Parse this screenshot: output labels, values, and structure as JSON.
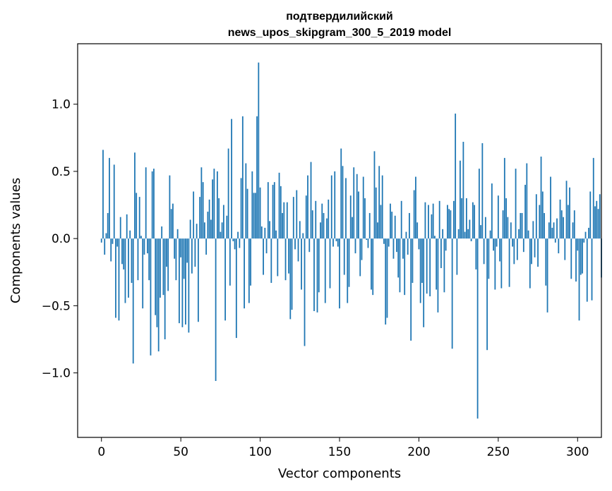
{
  "chart_data": {
    "type": "bar",
    "title_line1": "подтвердилийский",
    "title_line2": "news_upos_skipgram_300_5_2019 model",
    "xlabel": "Vector components",
    "ylabel": "Components values",
    "xlim": [
      -15,
      315
    ],
    "ylim": [
      -1.48,
      1.45
    ],
    "xticks": [
      0,
      50,
      100,
      150,
      200,
      250,
      300
    ],
    "xtick_labels": [
      "0",
      "50",
      "100",
      "150",
      "200",
      "250",
      "300"
    ],
    "yticks": [
      -1.0,
      -0.5,
      0.0,
      0.5,
      1.0
    ],
    "ytick_labels": [
      "−1.0",
      "−0.5",
      "0.0",
      "0.5",
      "1.0"
    ],
    "bar_color": "#1f77b4",
    "values": [
      -0.03,
      0.66,
      -0.12,
      0.04,
      0.19,
      0.6,
      -0.17,
      -0.04,
      0.55,
      -0.59,
      -0.06,
      -0.61,
      0.16,
      -0.19,
      -0.23,
      -0.48,
      0.18,
      -0.44,
      0.06,
      -0.33,
      -0.93,
      0.64,
      0.34,
      -0.31,
      0.31,
      0.02,
      -0.52,
      -0.12,
      0.53,
      -0.11,
      -0.31,
      -0.87,
      0.5,
      0.52,
      -0.57,
      -0.66,
      -0.84,
      -0.44,
      0.09,
      -0.42,
      -0.75,
      -0.21,
      -0.39,
      0.47,
      0.22,
      0.26,
      -0.15,
      -0.31,
      0.07,
      -0.63,
      -0.14,
      -0.66,
      -0.3,
      -0.64,
      -0.18,
      -0.7,
      0.14,
      -0.26,
      0.35,
      -0.21,
      0.11,
      -0.62,
      0.31,
      0.53,
      0.42,
      0.12,
      -0.12,
      0.2,
      0.29,
      0.14,
      0.44,
      0.52,
      -1.06,
      0.5,
      0.3,
      0.05,
      0.12,
      0.25,
      -0.61,
      0.17,
      0.67,
      -0.35,
      0.89,
      -0.02,
      -0.08,
      -0.74,
      0.05,
      -0.07,
      0.45,
      0.91,
      -0.52,
      0.56,
      0.37,
      -0.48,
      -0.35,
      0.5,
      0.34,
      0.34,
      0.91,
      1.31,
      0.38,
      0.09,
      -0.27,
      0.08,
      -0.11,
      0.42,
      0.13,
      -0.33,
      0.4,
      0.42,
      0.06,
      -0.28,
      0.49,
      0.39,
      0.19,
      0.27,
      -0.31,
      0.27,
      -0.26,
      -0.6,
      -0.53,
      0.31,
      -0.08,
      0.36,
      -0.17,
      0.13,
      -0.38,
      0.04,
      -0.8,
      0.32,
      0.47,
      -0.1,
      0.57,
      0.21,
      -0.54,
      0.28,
      -0.55,
      -0.4,
      0.12,
      0.26,
      0.19,
      -0.48,
      0.15,
      0.29,
      -0.37,
      0.47,
      -0.06,
      0.5,
      -0.02,
      -0.06,
      -0.52,
      0.67,
      0.54,
      -0.27,
      0.45,
      -0.48,
      -0.36,
      0.32,
      0.16,
      0.53,
      -0.11,
      0.48,
      0.35,
      -0.28,
      -0.16,
      0.46,
      0.3,
      -0.01,
      -0.07,
      0.19,
      -0.38,
      -0.42,
      0.65,
      0.38,
      0.12,
      0.54,
      0.25,
      0.47,
      -0.04,
      -0.64,
      -0.59,
      -0.06,
      0.26,
      0.2,
      -0.15,
      0.17,
      -0.1,
      -0.29,
      -0.4,
      0.28,
      -0.15,
      -0.42,
      0.05,
      -0.12,
      0.19,
      -0.76,
      -0.33,
      0.36,
      0.46,
      0.12,
      -0.08,
      -0.48,
      -0.33,
      -0.66,
      0.27,
      -0.41,
      0.25,
      -0.43,
      0.18,
      0.26,
      0.02,
      -0.38,
      -0.55,
      0.28,
      -0.22,
      0.07,
      -0.4,
      -0.09,
      0.25,
      0.22,
      0.21,
      -0.82,
      0.28,
      0.93,
      -0.27,
      0.07,
      0.58,
      0.3,
      0.72,
      0.05,
      0.3,
      0.07,
      0.14,
      -0.02,
      0.27,
      0.25,
      -0.23,
      -1.34,
      0.52,
      0.1,
      0.71,
      -0.19,
      0.16,
      -0.83,
      -0.3,
      0.06,
      0.41,
      -0.09,
      -0.38,
      -0.06,
      0.32,
      -0.17,
      -0.37,
      0.21,
      0.6,
      0.3,
      0.16,
      -0.36,
      0.12,
      -0.06,
      -0.19,
      0.52,
      -0.16,
      0.07,
      0.19,
      0.19,
      -0.1,
      0.4,
      0.56,
      0.06,
      -0.37,
      -0.19,
      0.13,
      -0.14,
      0.33,
      -0.21,
      0.25,
      0.61,
      0.35,
      0.19,
      -0.35,
      -0.55,
      0.12,
      0.46,
      0.08,
      0.12,
      -0.03,
      0.15,
      -0.11,
      0.29,
      0.21,
      0.16,
      -0.16,
      0.43,
      0.25,
      0.38,
      -0.3,
      0.12,
      0.21,
      -0.32,
      -0.09,
      -0.61,
      -0.27,
      -0.26,
      -0.03,
      0.05,
      -0.47,
      0.08,
      0.35,
      -0.46,
      0.6,
      0.24,
      0.28,
      0.22,
      0.33,
      -0.29
    ]
  }
}
